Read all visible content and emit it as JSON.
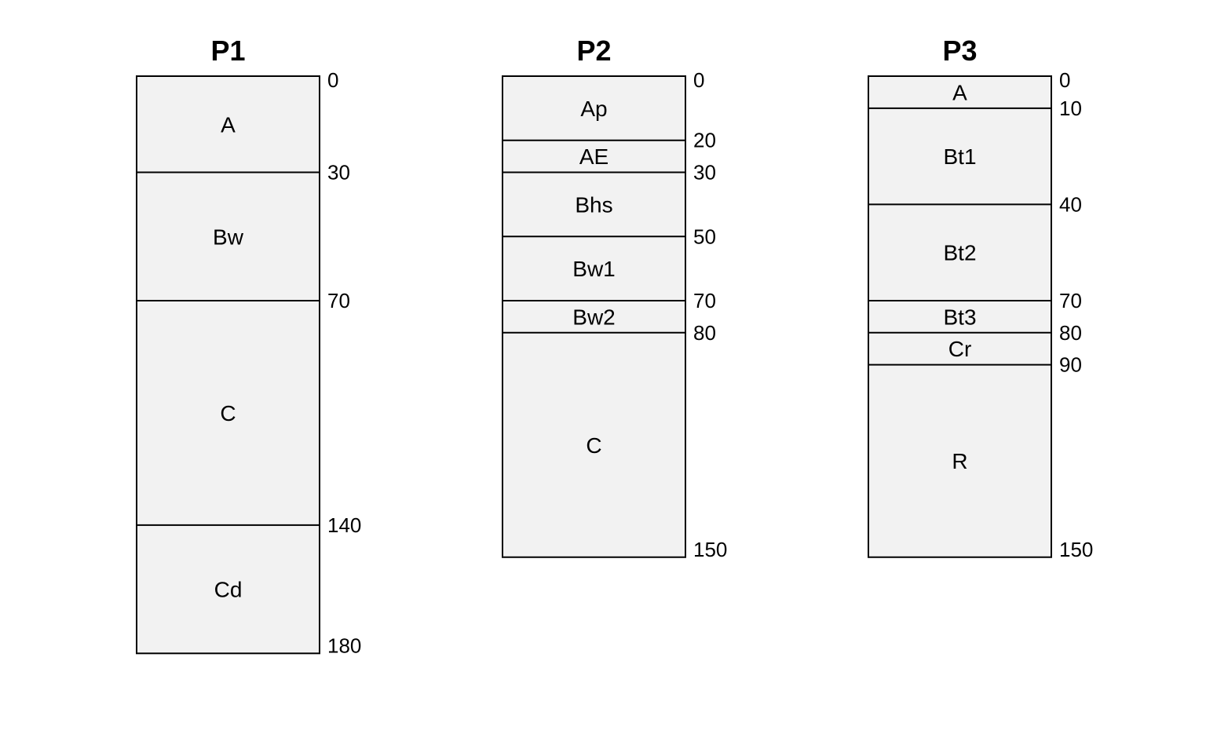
{
  "chart_data": {
    "type": "soil-profile",
    "depth_unit": "",
    "profiles": [
      {
        "name": "P1",
        "horizons": [
          {
            "name": "A",
            "top": 0,
            "bottom": 30
          },
          {
            "name": "Bw",
            "top": 30,
            "bottom": 70
          },
          {
            "name": "C",
            "top": 70,
            "bottom": 140
          },
          {
            "name": "Cd",
            "top": 140,
            "bottom": 180
          }
        ],
        "depth_labels": [
          0,
          30,
          70,
          140,
          180
        ]
      },
      {
        "name": "P2",
        "horizons": [
          {
            "name": "Ap",
            "top": 0,
            "bottom": 20
          },
          {
            "name": "AE",
            "top": 20,
            "bottom": 30
          },
          {
            "name": "Bhs",
            "top": 30,
            "bottom": 50
          },
          {
            "name": "Bw1",
            "top": 50,
            "bottom": 70
          },
          {
            "name": "Bw2",
            "top": 70,
            "bottom": 80
          },
          {
            "name": "C",
            "top": 80,
            "bottom": 150
          }
        ],
        "depth_labels": [
          0,
          20,
          30,
          50,
          70,
          80,
          150
        ]
      },
      {
        "name": "P3",
        "horizons": [
          {
            "name": "A",
            "top": 0,
            "bottom": 10
          },
          {
            "name": "Bt1",
            "top": 10,
            "bottom": 40
          },
          {
            "name": "Bt2",
            "top": 40,
            "bottom": 70
          },
          {
            "name": "Bt3",
            "top": 70,
            "bottom": 80
          },
          {
            "name": "Cr",
            "top": 80,
            "bottom": 90
          },
          {
            "name": "R",
            "top": 90,
            "bottom": 150
          }
        ],
        "depth_labels": [
          0,
          10,
          40,
          70,
          80,
          90,
          150
        ]
      }
    ],
    "colors": {
      "horizon_fill": "#f2f2f2",
      "line": "#000000",
      "text": "#000000"
    }
  }
}
